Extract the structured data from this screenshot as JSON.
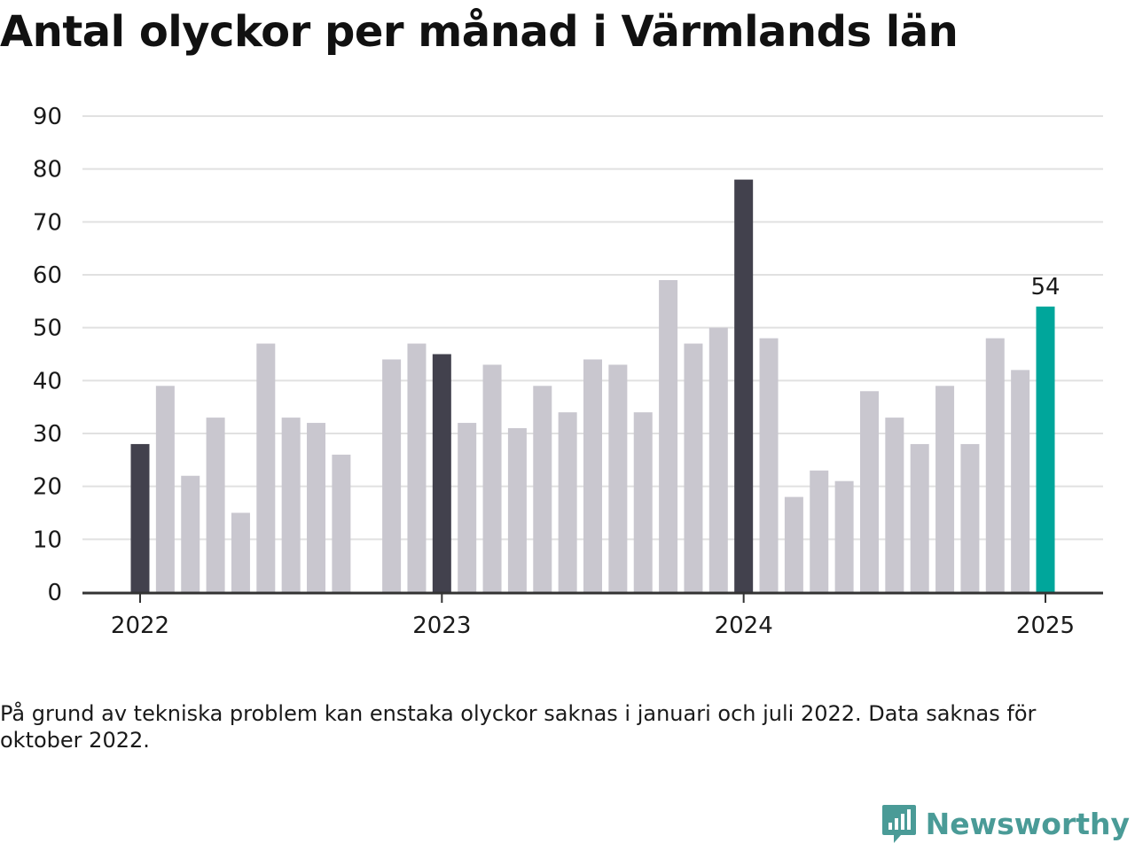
{
  "title": "Antal olyckor per månad i Värmlands län",
  "note": "På grund av tekniska problem kan enstaka olyckor saknas i januari och juli 2022. Data saknas för oktober 2022.",
  "brand": {
    "name": "Newsworthy",
    "icon": "newsworthy-logo-icon"
  },
  "colors": {
    "bar": "#c9c7cf",
    "highlight_bar": "#42414d",
    "latest_bar": "#00a69b",
    "gridline": "#e1e1e1",
    "axis": "#333333",
    "text": "#1a1a1a",
    "brand": "#4a9b97"
  },
  "chart_data": {
    "type": "bar",
    "title": "Antal olyckor per månad i Värmlands län",
    "xlabel": "",
    "ylabel": "",
    "ylim": [
      0,
      90
    ],
    "yticks": [
      0,
      10,
      20,
      30,
      40,
      50,
      60,
      70,
      80,
      90
    ],
    "xticks": [
      "2022",
      "2023",
      "2024",
      "2025"
    ],
    "grid": true,
    "categories": [
      "2022-01",
      "2022-02",
      "2022-03",
      "2022-04",
      "2022-05",
      "2022-06",
      "2022-07",
      "2022-08",
      "2022-09",
      "2022-10",
      "2022-11",
      "2022-12",
      "2023-01",
      "2023-02",
      "2023-03",
      "2023-04",
      "2023-05",
      "2023-06",
      "2023-07",
      "2023-08",
      "2023-09",
      "2023-10",
      "2023-11",
      "2023-12",
      "2024-01",
      "2024-02",
      "2024-03",
      "2024-04",
      "2024-05",
      "2024-06",
      "2024-07",
      "2024-08",
      "2024-09",
      "2024-10",
      "2024-11",
      "2024-12",
      "2025-01"
    ],
    "values": [
      28,
      39,
      22,
      33,
      15,
      47,
      33,
      32,
      26,
      null,
      44,
      47,
      45,
      32,
      43,
      31,
      39,
      34,
      44,
      43,
      34,
      59,
      47,
      50,
      78,
      48,
      18,
      23,
      21,
      38,
      33,
      28,
      39,
      28,
      48,
      42,
      54
    ],
    "highlighted": [
      "2022-01",
      "2023-01",
      "2024-01"
    ],
    "latest": "2025-01",
    "annotations": [
      {
        "category": "2025-01",
        "text": "54"
      }
    ]
  }
}
